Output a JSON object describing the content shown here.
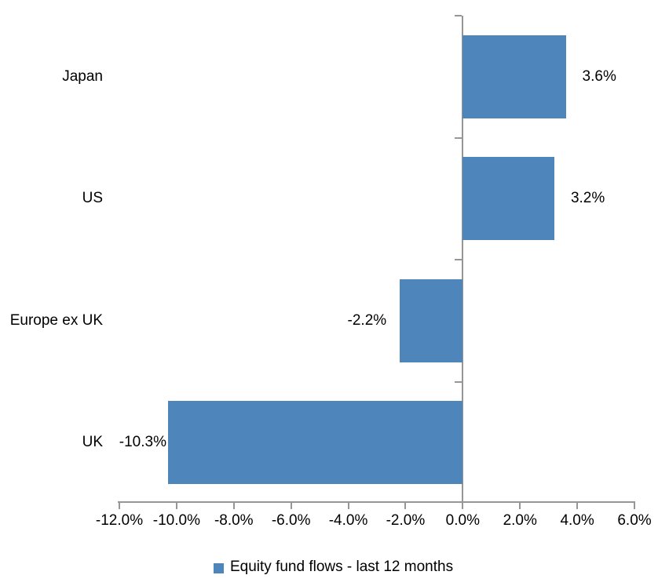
{
  "chart_data": {
    "type": "bar",
    "orientation": "horizontal",
    "title": "",
    "categories": [
      "Japan",
      "US",
      "Europe ex UK",
      "UK"
    ],
    "series": [
      {
        "name": "Equity fund flows - last 12 months",
        "values": [
          3.6,
          3.2,
          -2.2,
          -10.3
        ],
        "data_labels": [
          "3.6%",
          "3.2%",
          "-2.2%",
          "-10.3%"
        ]
      }
    ],
    "x_axis": {
      "range": [
        -12,
        6
      ],
      "tick_values": [
        -12,
        -10,
        -8,
        -6,
        -4,
        -2,
        0,
        2,
        4,
        6
      ],
      "tick_labels": [
        "-12.0%",
        "-10.0%",
        "-8.0%",
        "-6.0%",
        "-4.0%",
        "-2.0%",
        "0.0%",
        "2.0%",
        "4.0%",
        "6.0%"
      ],
      "format": "percent"
    },
    "grid": false,
    "legend": {
      "position": "bottom",
      "entries": [
        {
          "label": "Equity fund flows - last 12 months",
          "color": "#4E86BC"
        }
      ]
    },
    "colors": {
      "bar": "#4E86BC",
      "axis": "#969696",
      "text": "#000000",
      "background": "#FFFFFF"
    }
  }
}
